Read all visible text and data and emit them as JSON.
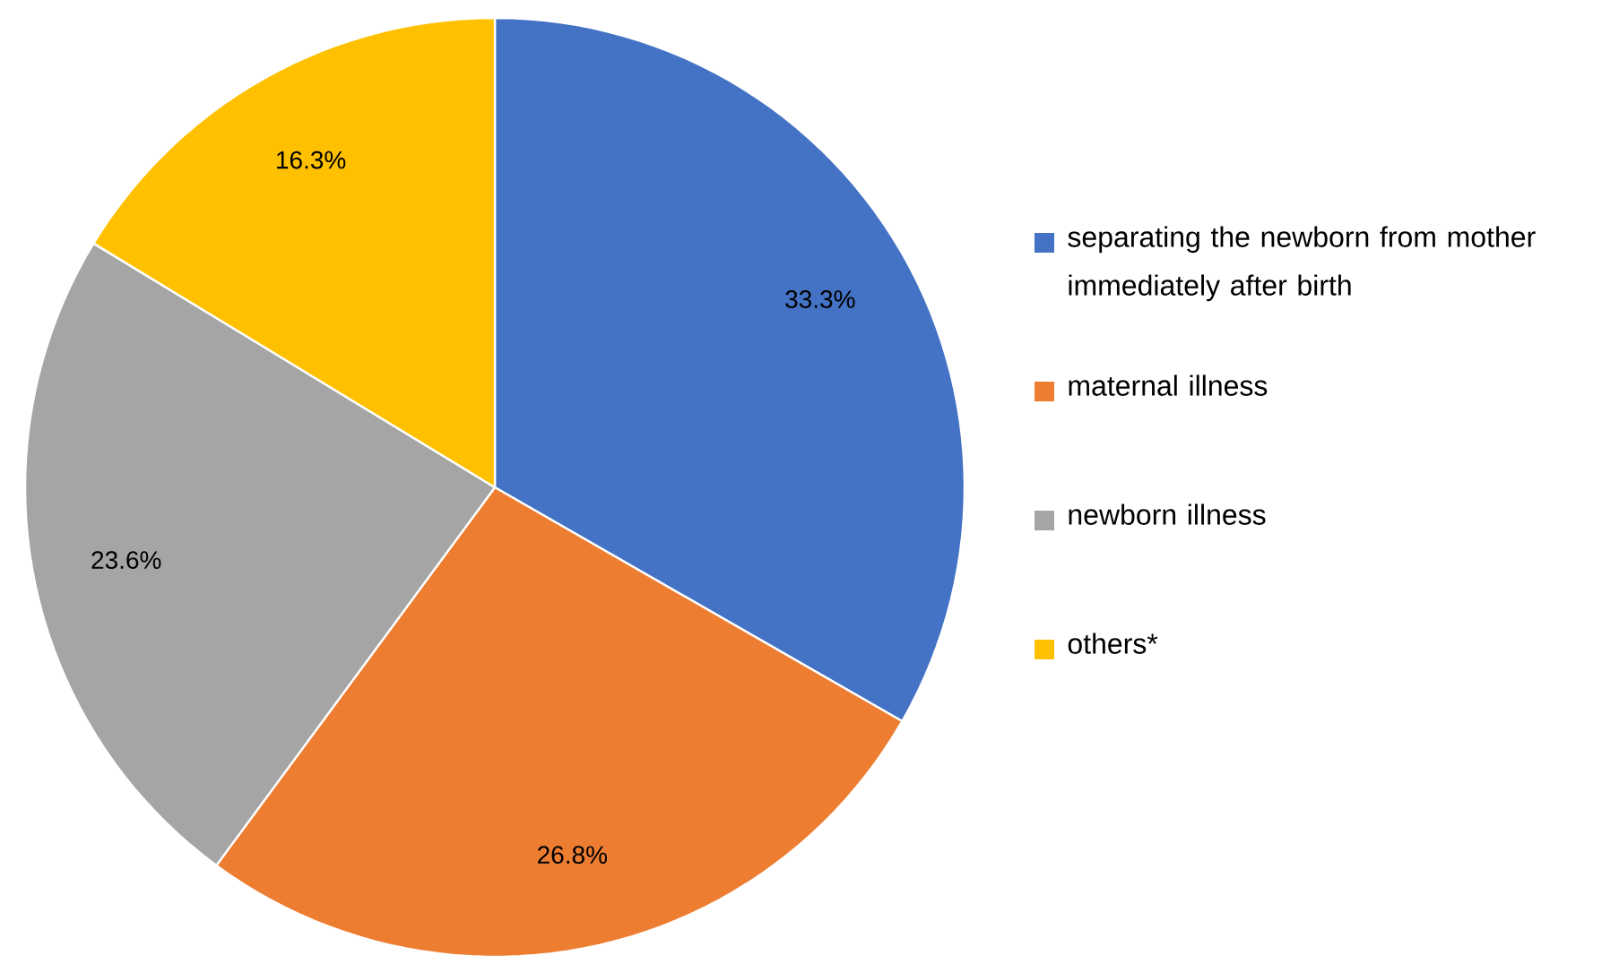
{
  "chart_data": {
    "type": "pie",
    "categories": [
      "separating the newborn from mother immediately after birth",
      "maternal illness",
      "newborn illness",
      "others*"
    ],
    "values": [
      33.3,
      26.8,
      23.6,
      16.3
    ],
    "colors": [
      "#4472c4",
      "#ed7d31",
      "#a5a5a5",
      "#ffc000"
    ],
    "value_labels": [
      "33.3%",
      "26.8%",
      "23.6%",
      "16.3%"
    ],
    "legend": "right"
  }
}
